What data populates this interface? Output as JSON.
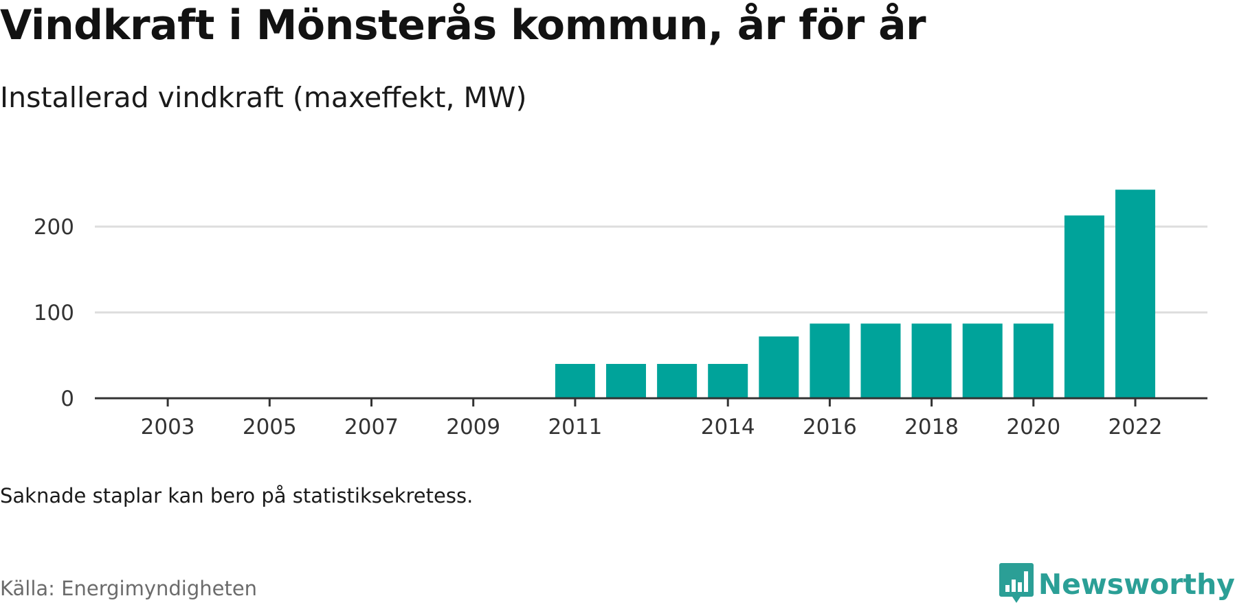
{
  "title": "Vindkraft i Mönsterås kommun, år för år",
  "subtitle": "Installerad vindkraft (maxeffekt, MW)",
  "note": "Saknade staplar kan bero på statistiksekretess.",
  "source": "Källa: Energimyndigheten",
  "logo_text": "Newsworthy",
  "logo_icon": "bar-chart-speech-bubble-icon",
  "colors": {
    "bar": "#00a39a",
    "grid": "#dddddd",
    "axis": "#333333",
    "logo": "#2b9f96"
  },
  "chart_data": {
    "type": "bar",
    "categories": [
      2002,
      2003,
      2004,
      2005,
      2006,
      2007,
      2008,
      2009,
      2010,
      2011,
      2012,
      2013,
      2014,
      2015,
      2016,
      2017,
      2018,
      2019,
      2020,
      2021,
      2022
    ],
    "values": [
      0,
      0,
      0,
      0,
      0,
      0,
      0,
      0,
      0,
      40,
      40,
      40,
      40,
      72,
      87,
      87,
      87,
      87,
      87,
      213,
      243
    ],
    "x_ticks": [
      2003,
      2005,
      2007,
      2009,
      2011,
      2014,
      2016,
      2018,
      2020,
      2022
    ],
    "y_ticks": [
      0,
      100,
      200
    ],
    "ylim": [
      0,
      250
    ],
    "grid": true,
    "legend": "none"
  }
}
